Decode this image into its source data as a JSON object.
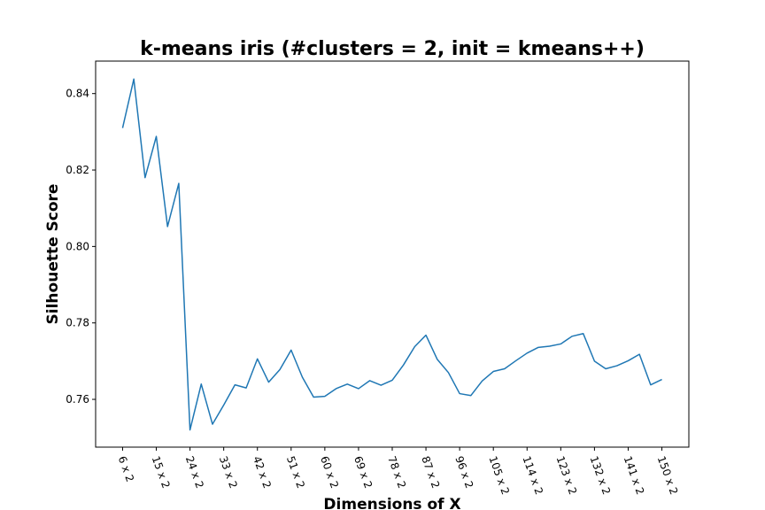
{
  "chart_data": {
    "type": "line",
    "title": "k-means iris (#clusters = 2, init = kmeans++)",
    "xlabel": "Dimensions of X",
    "ylabel": "Silhouette Score",
    "x_tick_labels": [
      "6 x 2",
      "15 x 2",
      "24 x 2",
      "33 x 2",
      "42 x 2",
      "51 x 2",
      "60 x 2",
      "69 x 2",
      "78 x 2",
      "87 x 2",
      "96 x 2",
      "105 x 2",
      "114 x 2",
      "123 x 2",
      "132 x 2",
      "141 x 2",
      "150 x 2"
    ],
    "y_ticks": [
      0.76,
      0.78,
      0.8,
      0.82,
      0.84
    ],
    "y_tick_labels": [
      "0.76",
      "0.78",
      "0.80",
      "0.82",
      "0.84"
    ],
    "ylim": [
      0.7475,
      0.8485
    ],
    "x": [
      6,
      9,
      12,
      15,
      18,
      21,
      24,
      27,
      30,
      33,
      36,
      39,
      42,
      45,
      48,
      51,
      54,
      57,
      60,
      63,
      66,
      69,
      72,
      75,
      78,
      81,
      84,
      87,
      90,
      93,
      96,
      99,
      102,
      105,
      108,
      111,
      114,
      117,
      120,
      123,
      126,
      129,
      132,
      135,
      138,
      141,
      144,
      147,
      150
    ],
    "xlim": [
      -1.2,
      157.2
    ],
    "series": [
      {
        "color": "#1f77b4",
        "values": [
          0.831,
          0.8438,
          0.818,
          0.8288,
          0.8052,
          0.8165,
          0.752,
          0.764,
          0.7535,
          0.7585,
          0.7638,
          0.763,
          0.7706,
          0.7645,
          0.7678,
          0.7729,
          0.7658,
          0.7606,
          0.7608,
          0.7628,
          0.764,
          0.7628,
          0.7649,
          0.7637,
          0.765,
          0.769,
          0.7738,
          0.7768,
          0.7705,
          0.767,
          0.7615,
          0.761,
          0.7648,
          0.7673,
          0.768,
          0.7701,
          0.7721,
          0.7736,
          0.7739,
          0.7745,
          0.7765,
          0.7772,
          0.77,
          0.768,
          0.7688,
          0.7701,
          0.7718,
          0.7638,
          0.7652
        ]
      }
    ],
    "grid": false
  }
}
